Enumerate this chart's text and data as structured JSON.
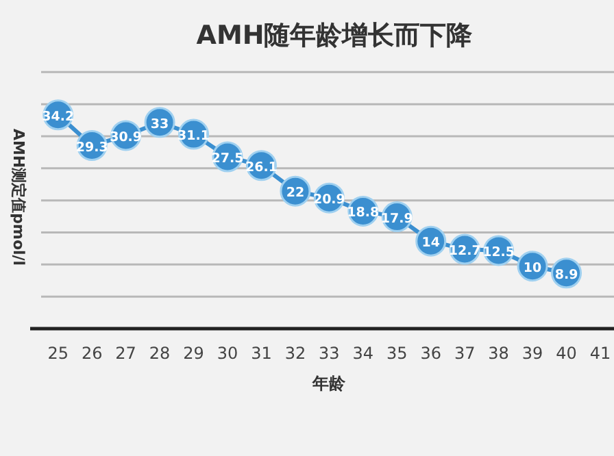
{
  "chart_data": {
    "type": "line",
    "title": "AMH随年龄增长而下降",
    "xlabel": "年龄",
    "ylabel": "AMH测定值pmol/l",
    "categories": [
      "25",
      "26",
      "27",
      "28",
      "29",
      "30",
      "31",
      "32",
      "33",
      "34",
      "35",
      "36",
      "37",
      "38",
      "39",
      "40",
      "41"
    ],
    "values": [
      34.2,
      29.3,
      30.9,
      33,
      31.1,
      27.5,
      26.1,
      22,
      20.9,
      18.8,
      17.9,
      14,
      12.7,
      12.5,
      10,
      8.9,
      null
    ],
    "value_labels": [
      "34.2",
      "29.3",
      "30.9",
      "33",
      "31.1",
      "27.5",
      "26.1",
      "22",
      "20.9",
      "18.8",
      "17.9",
      "14",
      "12.7",
      "12.5",
      "10",
      "8.9",
      null
    ],
    "color": "#3b8fd0",
    "marker": "circle",
    "grid": true,
    "tick_labels": "x"
  }
}
